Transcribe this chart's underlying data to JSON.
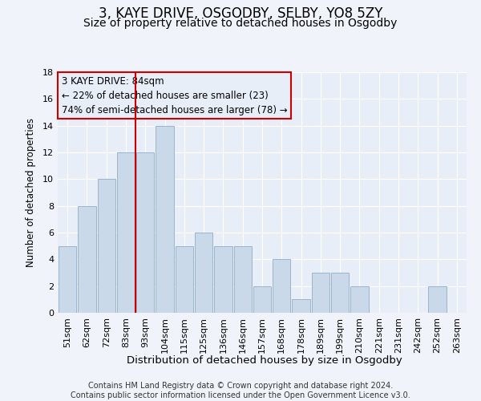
{
  "title": "3, KAYE DRIVE, OSGODBY, SELBY, YO8 5ZY",
  "subtitle": "Size of property relative to detached houses in Osgodby",
  "xlabel": "Distribution of detached houses by size in Osgodby",
  "ylabel": "Number of detached properties",
  "categories": [
    "51sqm",
    "62sqm",
    "72sqm",
    "83sqm",
    "93sqm",
    "104sqm",
    "115sqm",
    "125sqm",
    "136sqm",
    "146sqm",
    "157sqm",
    "168sqm",
    "178sqm",
    "189sqm",
    "199sqm",
    "210sqm",
    "221sqm",
    "231sqm",
    "242sqm",
    "252sqm",
    "263sqm"
  ],
  "values": [
    5,
    8,
    10,
    12,
    12,
    14,
    5,
    6,
    5,
    5,
    2,
    4,
    1,
    3,
    3,
    2,
    0,
    0,
    0,
    2,
    0
  ],
  "bar_color": "#c9d9ea",
  "bar_edgecolor": "#9ab4cc",
  "vline_x": 3.5,
  "vline_color": "#cc0000",
  "annotation_line1": "3 KAYE DRIVE: 84sqm",
  "annotation_line2": "← 22% of detached houses are smaller (23)",
  "annotation_line3": "74% of semi-detached houses are larger (78) →",
  "ylim": [
    0,
    18
  ],
  "yticks": [
    0,
    2,
    4,
    6,
    8,
    10,
    12,
    14,
    16,
    18
  ],
  "bg_color": "#f0f4fa",
  "plot_bg_color": "#e8eef8",
  "grid_color": "#ffffff",
  "footer": "Contains HM Land Registry data © Crown copyright and database right 2024.\nContains public sector information licensed under the Open Government Licence v3.0.",
  "title_fontsize": 12,
  "subtitle_fontsize": 10,
  "xlabel_fontsize": 9.5,
  "ylabel_fontsize": 8.5,
  "tick_fontsize": 8,
  "annotation_fontsize": 8.5,
  "footer_fontsize": 7
}
